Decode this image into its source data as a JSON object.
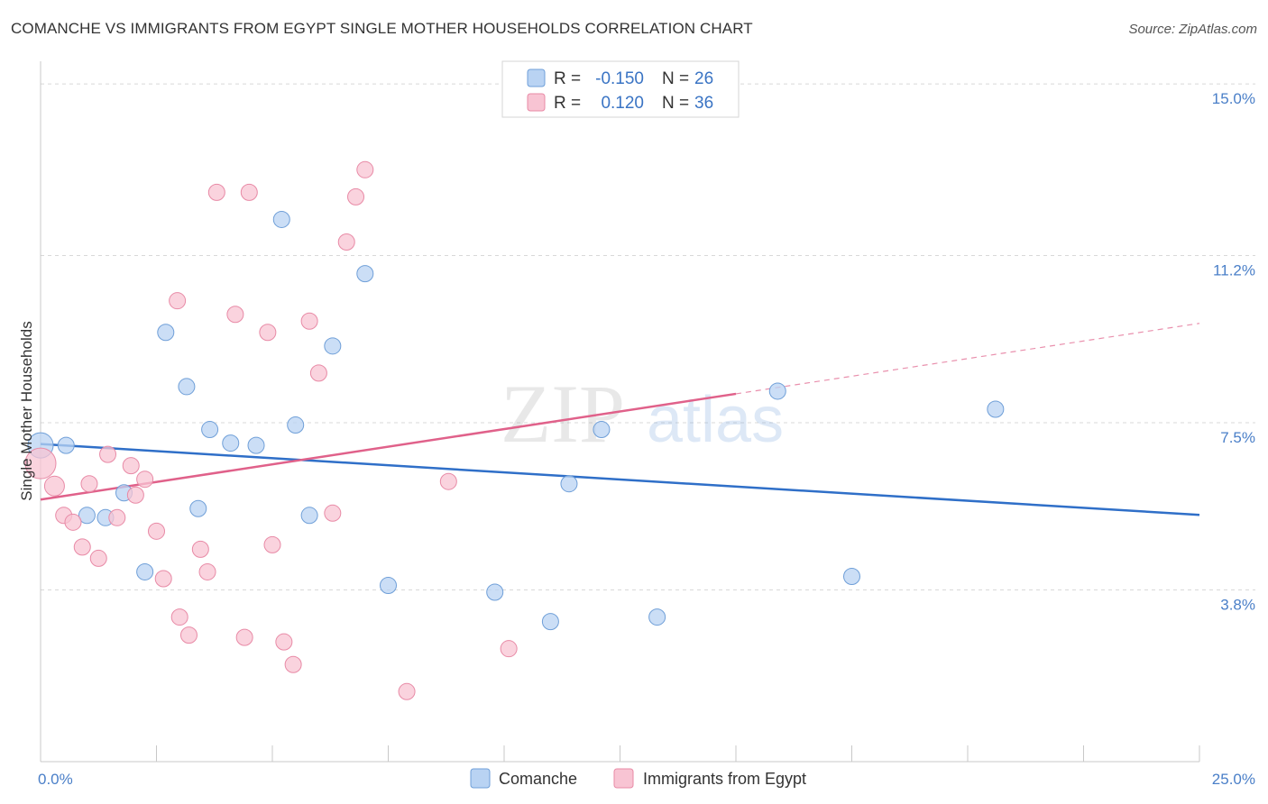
{
  "title": "COMANCHE VS IMMIGRANTS FROM EGYPT SINGLE MOTHER HOUSEHOLDS CORRELATION CHART",
  "source": "Source: ZipAtlas.com",
  "watermark": {
    "part1": "ZIP",
    "part2": "atlas"
  },
  "colors": {
    "comanche_fill": "#b9d3f3",
    "comanche_stroke": "#6f9fd8",
    "comanche_line": "#2f6fc8",
    "egypt_fill": "#f8c4d3",
    "egypt_stroke": "#e88aa6",
    "egypt_line": "#e0618a",
    "grid": "#d8d8d8",
    "tick_label": "#4a7fc8"
  },
  "legend": {
    "r_label": "R =",
    "n_label": "N =",
    "rows": [
      {
        "r": "-0.150",
        "n": "26"
      },
      {
        "r": "0.120",
        "n": "36"
      }
    ]
  },
  "chart_data": {
    "type": "scatter",
    "ylabel": "Single Mother Households",
    "xlim": [
      0,
      25
    ],
    "ylim": [
      0,
      15.5
    ],
    "x_tick_labels": [
      {
        "value": 0,
        "label": "0.0%"
      },
      {
        "value": 25,
        "label": "25.0%"
      }
    ],
    "y_tick_labels": [
      {
        "value": 3.8,
        "label": "3.8%"
      },
      {
        "value": 7.5,
        "label": "7.5%"
      },
      {
        "value": 11.2,
        "label": "11.2%"
      },
      {
        "value": 15.0,
        "label": "15.0%"
      }
    ],
    "x_minor_ticks": [
      0,
      2.5,
      5,
      7.5,
      10,
      12.5,
      15,
      17.5,
      20,
      22.5,
      25
    ],
    "legend_placement": "top-center",
    "series": [
      {
        "name": "Comanche",
        "trend": {
          "x0": 0,
          "y0": 7.03,
          "x1": 25,
          "y1": 5.46,
          "solid_to": 25
        },
        "points": [
          [
            0.0,
            7.0,
            14
          ],
          [
            0.55,
            7.0,
            9
          ],
          [
            5.2,
            12.0,
            9
          ],
          [
            7.0,
            10.8,
            9
          ],
          [
            2.7,
            9.5,
            9
          ],
          [
            6.3,
            9.2,
            9
          ],
          [
            3.15,
            8.3,
            9
          ],
          [
            3.65,
            7.35,
            9
          ],
          [
            4.1,
            7.05,
            9
          ],
          [
            4.65,
            7.0,
            9
          ],
          [
            5.5,
            7.45,
            9
          ],
          [
            12.1,
            7.35,
            9
          ],
          [
            15.9,
            8.2,
            9
          ],
          [
            20.6,
            7.8,
            9
          ],
          [
            1.8,
            5.95,
            9
          ],
          [
            11.4,
            6.15,
            9
          ],
          [
            1.0,
            5.45,
            9
          ],
          [
            1.4,
            5.4,
            9
          ],
          [
            3.4,
            5.6,
            9
          ],
          [
            5.8,
            5.45,
            9
          ],
          [
            2.25,
            4.2,
            9
          ],
          [
            7.5,
            3.9,
            9
          ],
          [
            9.8,
            3.75,
            9
          ],
          [
            17.5,
            4.1,
            9
          ],
          [
            11.0,
            3.1,
            9
          ],
          [
            13.3,
            3.2,
            9
          ]
        ]
      },
      {
        "name": "Immigrants from Egypt",
        "trend": {
          "x0": 0,
          "y0": 5.8,
          "x1": 25,
          "y1": 9.7,
          "solid_to": 15.0
        },
        "points": [
          [
            0.0,
            6.6,
            17
          ],
          [
            0.3,
            6.1,
            11
          ],
          [
            7.0,
            13.1,
            9
          ],
          [
            3.8,
            12.6,
            9
          ],
          [
            4.5,
            12.6,
            9
          ],
          [
            6.8,
            12.5,
            9
          ],
          [
            6.6,
            11.5,
            9
          ],
          [
            2.95,
            10.2,
            9
          ],
          [
            4.2,
            9.9,
            9
          ],
          [
            4.9,
            9.5,
            9
          ],
          [
            5.8,
            9.75,
            9
          ],
          [
            6.0,
            8.6,
            9
          ],
          [
            1.45,
            6.8,
            9
          ],
          [
            1.95,
            6.55,
            9
          ],
          [
            2.25,
            6.25,
            9
          ],
          [
            1.05,
            6.15,
            9
          ],
          [
            2.05,
            5.9,
            9
          ],
          [
            0.5,
            5.45,
            9
          ],
          [
            0.7,
            5.3,
            9
          ],
          [
            1.65,
            5.4,
            9
          ],
          [
            6.3,
            5.5,
            9
          ],
          [
            8.8,
            6.2,
            9
          ],
          [
            2.5,
            5.1,
            9
          ],
          [
            0.9,
            4.75,
            9
          ],
          [
            5.0,
            4.8,
            9
          ],
          [
            3.45,
            4.7,
            9
          ],
          [
            1.25,
            4.5,
            9
          ],
          [
            3.6,
            4.2,
            9
          ],
          [
            2.65,
            4.05,
            9
          ],
          [
            3.0,
            3.2,
            9
          ],
          [
            3.2,
            2.8,
            9
          ],
          [
            4.4,
            2.75,
            9
          ],
          [
            5.25,
            2.65,
            9
          ],
          [
            10.1,
            2.5,
            9
          ],
          [
            5.45,
            2.15,
            9
          ],
          [
            7.9,
            1.55,
            9
          ]
        ]
      }
    ]
  }
}
